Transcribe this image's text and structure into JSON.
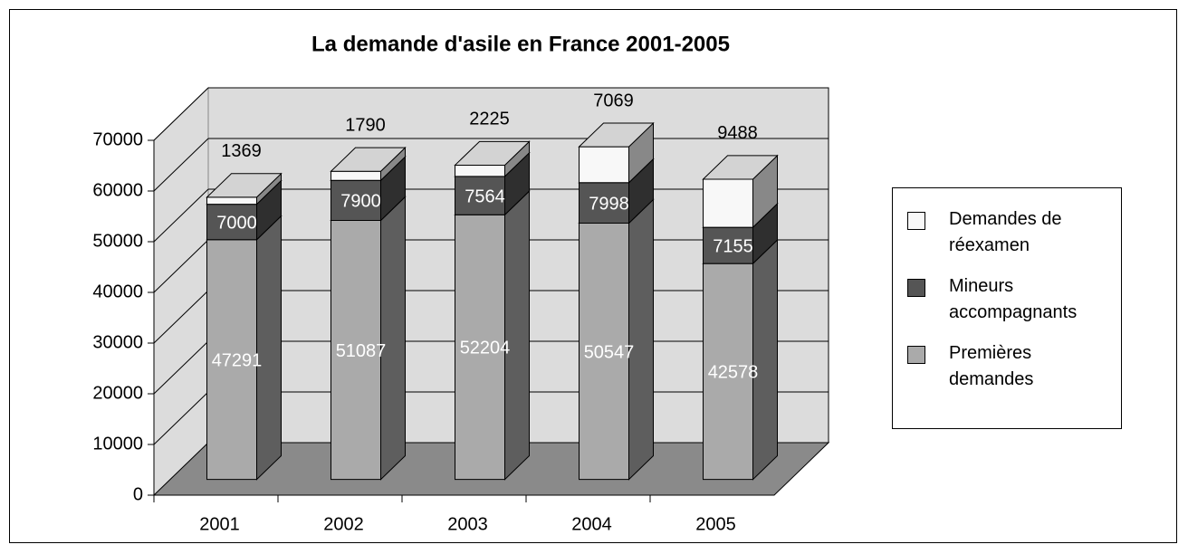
{
  "chart_data": {
    "type": "bar3d_stacked",
    "title": "La demande d'asile en France 2001-2005",
    "categories": [
      "2001",
      "2002",
      "2003",
      "2004",
      "2005"
    ],
    "series": [
      {
        "name": "Premières demandes",
        "color": "#aaaaaa",
        "values": [
          47291,
          51087,
          52204,
          50547,
          42578
        ]
      },
      {
        "name": "Mineurs accompagnants",
        "color": "#555555",
        "values": [
          7000,
          7900,
          7564,
          7998,
          7155
        ]
      },
      {
        "name": "Demandes de réexamen",
        "color": "#f8f8f8",
        "values": [
          1369,
          1790,
          2225,
          7069,
          9488
        ]
      }
    ],
    "ylim": [
      0,
      70000
    ],
    "yticks": [
      0,
      10000,
      20000,
      30000,
      40000,
      50000,
      60000,
      70000
    ],
    "grid": true,
    "legend": "right"
  }
}
